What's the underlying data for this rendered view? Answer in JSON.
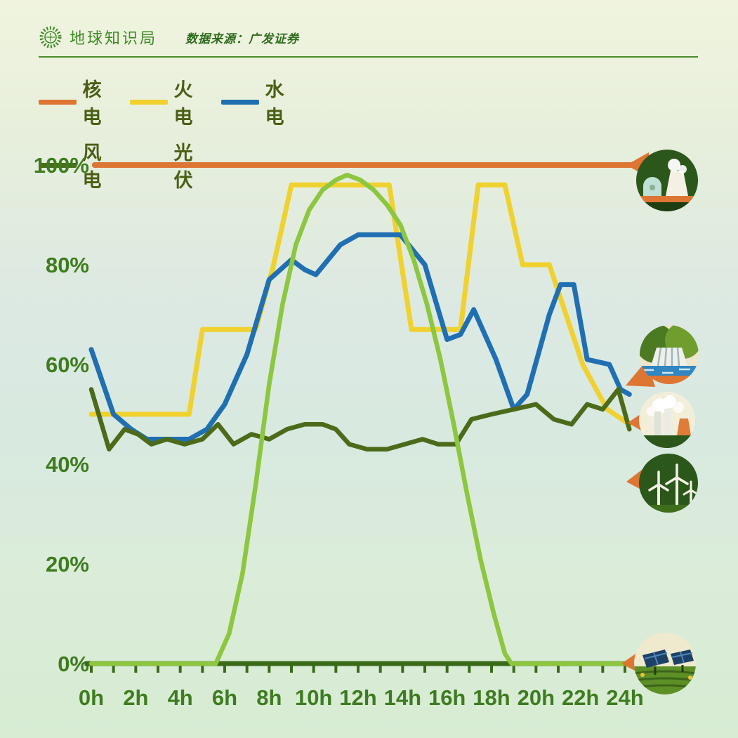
{
  "header": {
    "brand": "地球知识局",
    "source": "数据来源：广发证券"
  },
  "legend": {
    "rows": [
      [
        {
          "key": "nuclear",
          "label": "核电",
          "color": "#DD7533"
        },
        {
          "key": "thermal",
          "label": "火电",
          "color": "#F0D12D"
        },
        {
          "key": "hydro",
          "label": "水电",
          "color": "#1F6FB2"
        }
      ],
      [
        {
          "key": "wind",
          "label": "风电",
          "color": "#4C6B1A"
        },
        {
          "key": "solar",
          "label": "光伏",
          "color": "#8DC63F"
        }
      ]
    ]
  },
  "icons": {
    "logo": "sunburst-globe-icon",
    "badges": [
      "nuclear-plant-icon",
      "hydro-dam-icon",
      "thermal-plant-icon",
      "wind-turbines-icon",
      "solar-panels-icon"
    ]
  },
  "chart_data": {
    "type": "line",
    "title": "",
    "xlabel": "",
    "ylabel": "",
    "ylim": [
      0,
      100
    ],
    "xlim_hours": [
      0,
      24
    ],
    "grid": false,
    "legend_position": "top-left",
    "axis_color": "#3A6B1A",
    "label_color": "#3E7C1F",
    "y_ticks": [
      {
        "label": "0%",
        "value": 0
      },
      {
        "label": "20%",
        "value": 20
      },
      {
        "label": "40%",
        "value": 40
      },
      {
        "label": "60%",
        "value": 60
      },
      {
        "label": "80%",
        "value": 80
      },
      {
        "label": "100%",
        "value": 100
      }
    ],
    "x_ticks": [
      {
        "label": "0h",
        "hour": 0
      },
      {
        "label": "2h",
        "hour": 2
      },
      {
        "label": "4h",
        "hour": 4
      },
      {
        "label": "6h",
        "hour": 6
      },
      {
        "label": "8h",
        "hour": 8
      },
      {
        "label": "10h",
        "hour": 10
      },
      {
        "label": "12h",
        "hour": 12
      },
      {
        "label": "14h",
        "hour": 14
      },
      {
        "label": "16h",
        "hour": 16
      },
      {
        "label": "18h",
        "hour": 18
      },
      {
        "label": "20h",
        "hour": 20
      },
      {
        "label": "22h",
        "hour": 22
      },
      {
        "label": "24h",
        "hour": 24
      }
    ],
    "series": [
      {
        "key": "nuclear",
        "name": "核电",
        "color": "#DD7533",
        "width": 8,
        "points": [
          [
            0.15,
            100
          ],
          [
            24.3,
            100
          ]
        ]
      },
      {
        "key": "thermal",
        "name": "火电",
        "color": "#F0D12D",
        "width": 7,
        "points": [
          [
            0,
            50
          ],
          [
            4.4,
            50
          ],
          [
            5.0,
            67
          ],
          [
            7.4,
            67
          ],
          [
            8.2,
            80
          ],
          [
            9.0,
            96
          ],
          [
            13.4,
            96
          ],
          [
            14.4,
            67
          ],
          [
            16.6,
            67
          ],
          [
            17.4,
            96
          ],
          [
            18.6,
            96
          ],
          [
            19.4,
            80
          ],
          [
            20.6,
            80
          ],
          [
            22.1,
            60
          ],
          [
            23.2,
            51
          ],
          [
            24.2,
            48
          ]
        ]
      },
      {
        "key": "hydro",
        "name": "水电",
        "color": "#1F6FB2",
        "width": 7,
        "points": [
          [
            0,
            63
          ],
          [
            1,
            50
          ],
          [
            1.8,
            47
          ],
          [
            2.5,
            45
          ],
          [
            4.4,
            45
          ],
          [
            5.2,
            47
          ],
          [
            6,
            52
          ],
          [
            7,
            62
          ],
          [
            8,
            77
          ],
          [
            9,
            81
          ],
          [
            9.6,
            79
          ],
          [
            10.1,
            78
          ],
          [
            11.2,
            84
          ],
          [
            12,
            86
          ],
          [
            13.9,
            86
          ],
          [
            15,
            80
          ],
          [
            16,
            65
          ],
          [
            16.6,
            66
          ],
          [
            17.2,
            71
          ],
          [
            18.2,
            61
          ],
          [
            19,
            51
          ],
          [
            19.6,
            54
          ],
          [
            20.6,
            70
          ],
          [
            21.1,
            76
          ],
          [
            21.7,
            76
          ],
          [
            22.3,
            61
          ],
          [
            23.3,
            60
          ],
          [
            23.8,
            55
          ],
          [
            24.2,
            54
          ]
        ]
      },
      {
        "key": "wind",
        "name": "风电",
        "color": "#4C6B1A",
        "width": 6.5,
        "points": [
          [
            0,
            55
          ],
          [
            0.8,
            43
          ],
          [
            1.5,
            47
          ],
          [
            2.1,
            46
          ],
          [
            2.7,
            44
          ],
          [
            3.4,
            45
          ],
          [
            4.2,
            44
          ],
          [
            5.0,
            45
          ],
          [
            5.7,
            48
          ],
          [
            6.4,
            44
          ],
          [
            7.2,
            46
          ],
          [
            8.0,
            45
          ],
          [
            8.8,
            47
          ],
          [
            9.6,
            48
          ],
          [
            10.4,
            48
          ],
          [
            11.0,
            47
          ],
          [
            11.6,
            44
          ],
          [
            12.4,
            43
          ],
          [
            13.3,
            43
          ],
          [
            14.1,
            44
          ],
          [
            14.9,
            45
          ],
          [
            15.6,
            44
          ],
          [
            16.4,
            44
          ],
          [
            17.1,
            49
          ],
          [
            18.0,
            50
          ],
          [
            19.0,
            51
          ],
          [
            20.0,
            52
          ],
          [
            20.8,
            49
          ],
          [
            21.6,
            48
          ],
          [
            22.3,
            52
          ],
          [
            23.0,
            51
          ],
          [
            23.7,
            55
          ],
          [
            24.2,
            47
          ]
        ]
      },
      {
        "key": "solar",
        "name": "光伏",
        "color": "#8DC63F",
        "width": 6.5,
        "points": [
          [
            0,
            0
          ],
          [
            5.6,
            0
          ],
          [
            6.2,
            6
          ],
          [
            6.8,
            18
          ],
          [
            7.4,
            36
          ],
          [
            8.0,
            56
          ],
          [
            8.6,
            72
          ],
          [
            9.2,
            84
          ],
          [
            9.8,
            91
          ],
          [
            10.4,
            95
          ],
          [
            11.0,
            97
          ],
          [
            11.5,
            98
          ],
          [
            12.1,
            97
          ],
          [
            12.7,
            95
          ],
          [
            13.3,
            92
          ],
          [
            13.9,
            88
          ],
          [
            14.5,
            81
          ],
          [
            15.1,
            72
          ],
          [
            15.7,
            61
          ],
          [
            16.3,
            48
          ],
          [
            16.9,
            34
          ],
          [
            17.5,
            21
          ],
          [
            18.1,
            10
          ],
          [
            18.6,
            2
          ],
          [
            18.9,
            0
          ],
          [
            24.2,
            0
          ]
        ]
      }
    ]
  }
}
